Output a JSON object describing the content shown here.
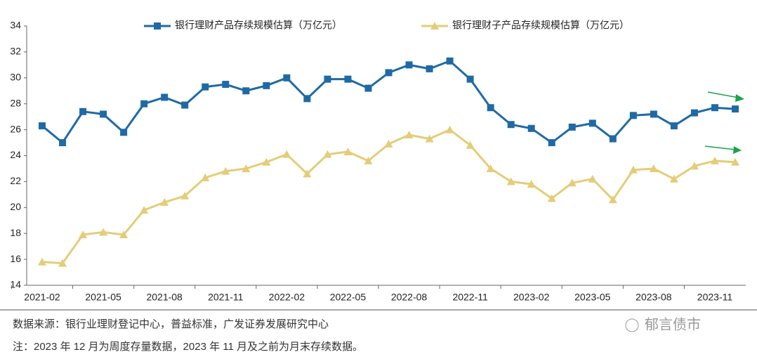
{
  "chart_data": {
    "type": "line",
    "categories": [
      "2021-02",
      null,
      null,
      "2021-05",
      null,
      null,
      "2021-08",
      null,
      null,
      "2021-11",
      null,
      null,
      "2022-02",
      null,
      null,
      "2022-05",
      null,
      null,
      "2022-08",
      null,
      null,
      "2022-11",
      null,
      null,
      "2023-02",
      null,
      null,
      "2023-05",
      null,
      null,
      "2023-08",
      null,
      null,
      "2023-11",
      null
    ],
    "series": [
      {
        "name": "银行理财产品存续规模估算（万亿元）",
        "color": "#1f6aa5",
        "marker": "square",
        "values": [
          26.3,
          25.0,
          27.4,
          27.2,
          25.8,
          28.0,
          28.5,
          27.9,
          29.3,
          29.5,
          29.0,
          29.4,
          30.0,
          28.4,
          29.9,
          29.9,
          29.2,
          30.4,
          31.0,
          30.7,
          31.3,
          29.9,
          27.7,
          26.4,
          26.1,
          25.0,
          26.2,
          26.5,
          25.3,
          27.1,
          27.2,
          26.3,
          27.3,
          27.7,
          27.6
        ]
      },
      {
        "name": "银行理财子产品存续规模估算（万亿元）",
        "color": "#e3cd78",
        "marker": "triangle",
        "values": [
          15.8,
          15.7,
          17.9,
          18.1,
          17.9,
          19.8,
          20.4,
          20.9,
          22.3,
          22.8,
          23.0,
          23.5,
          24.1,
          22.6,
          24.1,
          24.3,
          23.6,
          24.9,
          25.6,
          25.3,
          26.0,
          24.8,
          23.0,
          22.0,
          21.8,
          20.7,
          21.9,
          22.2,
          20.6,
          22.9,
          23.0,
          22.2,
          23.2,
          23.6,
          23.5
        ]
      }
    ],
    "ylim": [
      14,
      34
    ],
    "yticks": [
      14,
      16,
      18,
      20,
      22,
      24,
      26,
      28,
      30,
      32,
      34
    ],
    "source": "数据来源：银行业理财登记中心，普益标准，广发证券发展研究中心",
    "note": "注：2023 年 12 月为周度存量数据，2023 年 11 月及之前为月末存续数据。",
    "watermark": "郁言债市"
  }
}
